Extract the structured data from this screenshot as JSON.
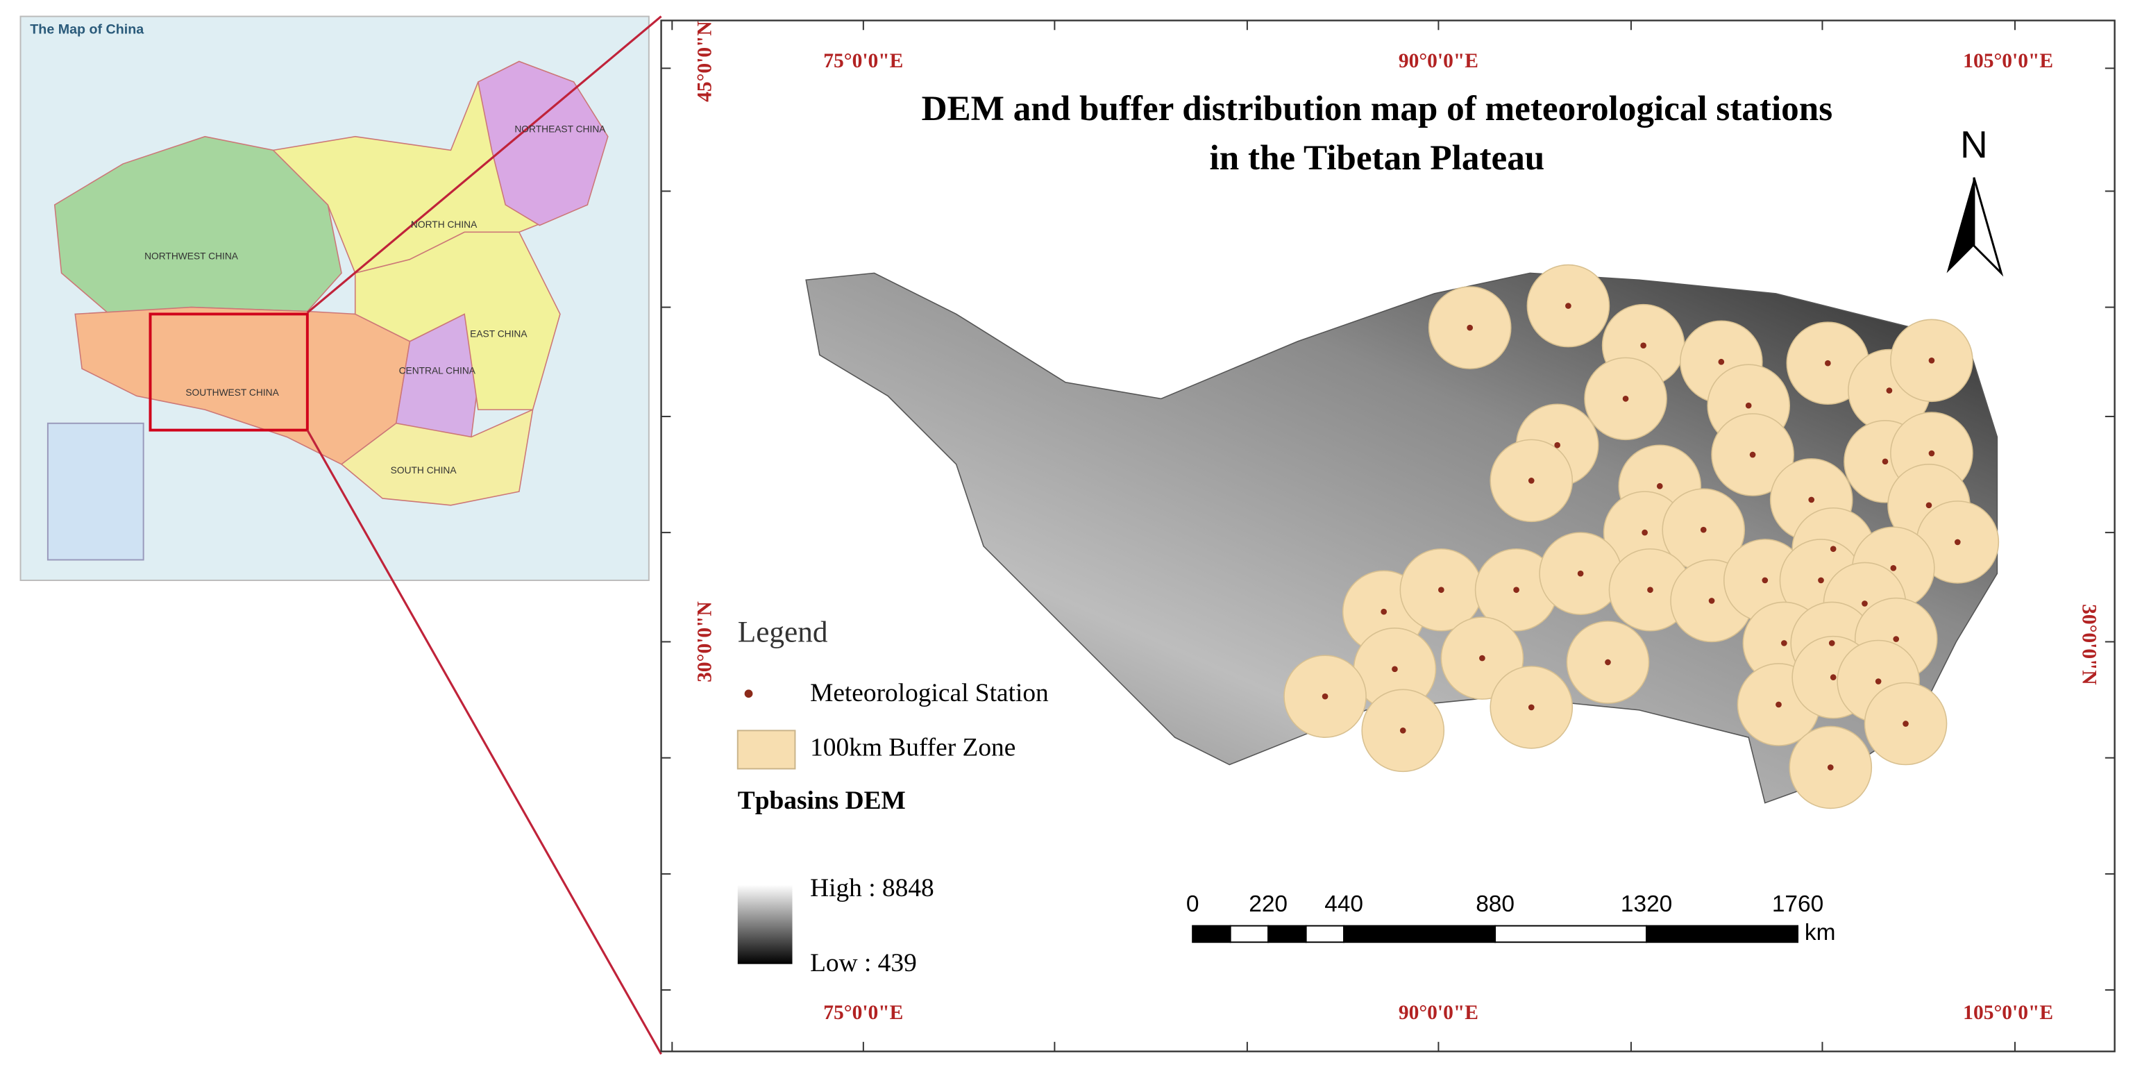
{
  "inset": {
    "title": "The Map of China",
    "regions": [
      "NORTHEAST CHINA",
      "NORTH CHINA",
      "NORTHWEST CHINA",
      "EAST CHINA",
      "CENTRAL CHINA",
      "SOUTHWEST CHINA",
      "SOUTH CHINA"
    ]
  },
  "map": {
    "title": [
      "DEM and buffer distribution map of meteorological stations",
      "in the Tibetan Plateau"
    ],
    "north": "N",
    "lon_labels_top": [
      "75°0'0\"E",
      "90°0'0\"E",
      "105°0'0\"E"
    ],
    "lon_labels_bottom": [
      "75°0'0\"E",
      "90°0'0\"E",
      "105°0'0\"E"
    ],
    "lat_labels_left": [
      "45°0'0\"N",
      "30°0'0\"N"
    ],
    "lat_labels_right": [
      "30°0'0\"N"
    ],
    "legend": {
      "title": "Legend",
      "station": "Meteorological Station",
      "buffer": "100km Buffer Zone",
      "dem_title": "Tpbasins DEM",
      "high": "High : 8848",
      "low": "Low : 439"
    },
    "scale_bar": {
      "ticks": [
        0,
        220,
        440,
        880,
        1320,
        1760
      ],
      "unit": "km"
    }
  }
}
